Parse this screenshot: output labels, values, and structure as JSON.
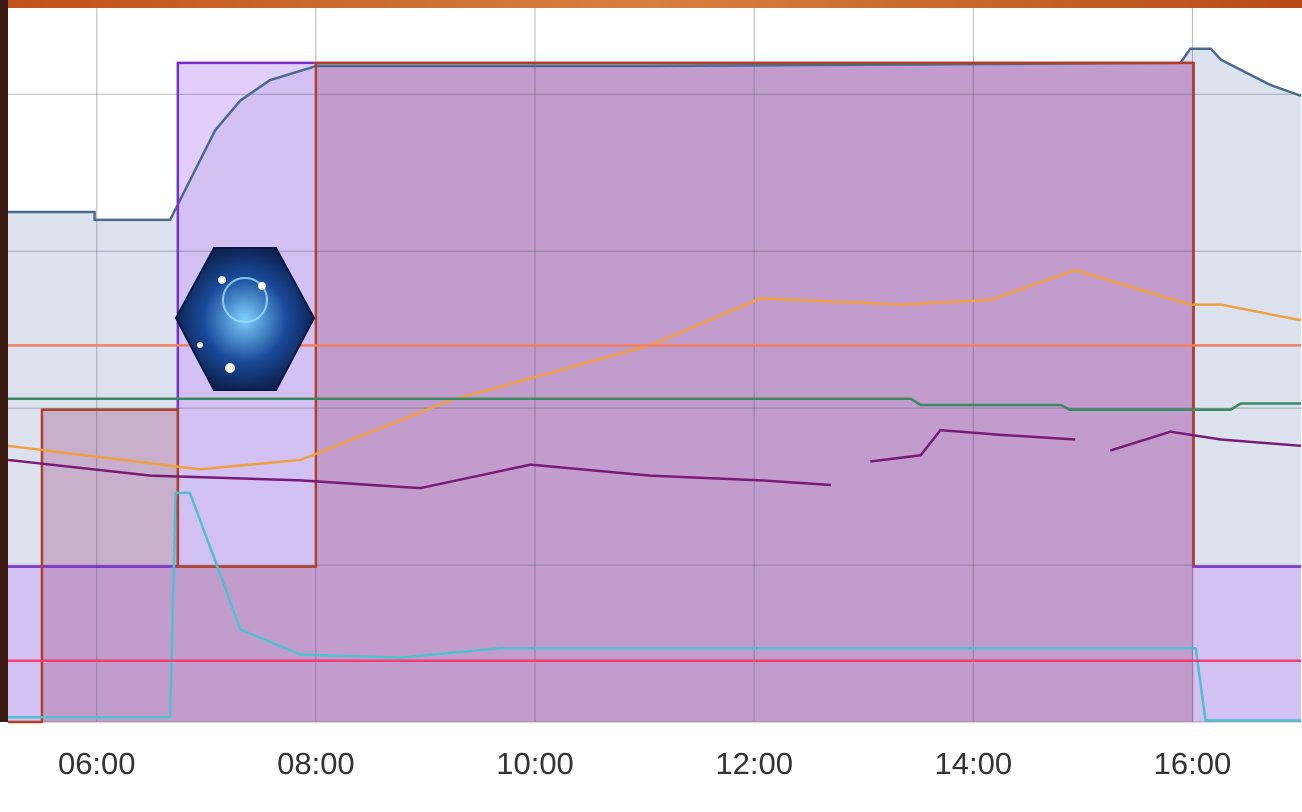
{
  "chart_data": {
    "type": "line",
    "xlim": [
      5.19,
      17.0
    ],
    "xticks": [
      {
        "value": 6,
        "label": "06:00"
      },
      {
        "value": 8,
        "label": "08:00"
      },
      {
        "value": 10,
        "label": "10:00"
      },
      {
        "value": 12,
        "label": "12:00"
      },
      {
        "value": 14,
        "label": "14:00"
      },
      {
        "value": 16,
        "label": "16:00"
      }
    ],
    "ylim": [
      0,
      4.55
    ],
    "yticks": [
      0,
      1,
      2,
      3,
      4
    ],
    "grid": true,
    "series": [
      {
        "color": "#4a6a90",
        "fill": "#dde3ee",
        "x": [
          5.19,
          5.98,
          5.98,
          6.67,
          6.85,
          7.08,
          7.31,
          7.58,
          7.86,
          8.0,
          11.05,
          15.89,
          15.98,
          16.17,
          16.26,
          16.71,
          16.99
        ],
        "values": [
          3.25,
          3.25,
          3.2,
          3.2,
          3.45,
          3.77,
          3.96,
          4.09,
          4.15,
          4.18,
          4.18,
          4.2,
          4.29,
          4.29,
          4.22,
          4.06,
          3.99
        ]
      },
      {
        "color": "#7a30c8",
        "fill": "rgba(200,165,245,0.55)",
        "x": [
          5.19,
          6.74,
          6.74,
          16.01,
          16.01,
          16.99
        ],
        "values": [
          0.99,
          0.99,
          4.2,
          4.2,
          0.99,
          0.99
        ]
      },
      {
        "color": "#b0402a",
        "fill": "rgba(175,110,160,0.45)",
        "x": [
          5.19,
          5.5,
          5.5,
          6.74,
          6.74,
          8.0,
          8.0,
          16.01,
          16.01
        ],
        "values": [
          0,
          0,
          1.99,
          1.99,
          0.99,
          0.99,
          4.2,
          4.2,
          0.99
        ]
      },
      {
        "color": "#f0a040",
        "x": [
          5.19,
          6.94,
          7.86,
          9.23,
          11.05,
          12.06,
          13.34,
          14.16,
          14.93,
          15.98,
          16.26,
          16.99
        ],
        "values": [
          1.76,
          1.61,
          1.67,
          2.05,
          2.4,
          2.7,
          2.66,
          2.69,
          2.88,
          2.66,
          2.66,
          2.56
        ]
      },
      {
        "color": "#7a1a78",
        "x": [
          5.19,
          6.49,
          7.86,
          8.95,
          9.96,
          11.05,
          12.06,
          12.7,
          12.8,
          13.06,
          13.52,
          13.7,
          14.25,
          14.93,
          15.0,
          15.25,
          15.8,
          16.26,
          16.99
        ],
        "values": [
          1.67,
          1.57,
          1.54,
          1.49,
          1.64,
          1.57,
          1.54,
          1.51,
          null,
          1.66,
          1.7,
          1.86,
          1.83,
          1.8,
          null,
          1.73,
          1.85,
          1.8,
          1.76
        ]
      },
      {
        "color": "#3a8a60",
        "x": [
          5.19,
          13.43,
          13.52,
          14.8,
          14.88,
          16.35,
          16.44,
          16.99
        ],
        "values": [
          2.06,
          2.06,
          2.02,
          2.02,
          1.99,
          1.99,
          2.03,
          2.03
        ]
      },
      {
        "color": "#50c0d0",
        "x": [
          5.19,
          6.67,
          6.72,
          6.85,
          7.08,
          7.31,
          7.86,
          8.77,
          9.68,
          16.03,
          16.12,
          16.99
        ],
        "values": [
          0.03,
          0.03,
          1.46,
          1.46,
          1.03,
          0.59,
          0.43,
          0.41,
          0.47,
          0.47,
          0.01,
          0.01
        ]
      },
      {
        "color": "#f08060",
        "x": [
          5.19,
          16.99
        ],
        "values": [
          2.4,
          2.4
        ]
      },
      {
        "color": "#f04070",
        "x": [
          5.19,
          16.99
        ],
        "values": [
          0.39,
          0.39
        ]
      }
    ]
  }
}
